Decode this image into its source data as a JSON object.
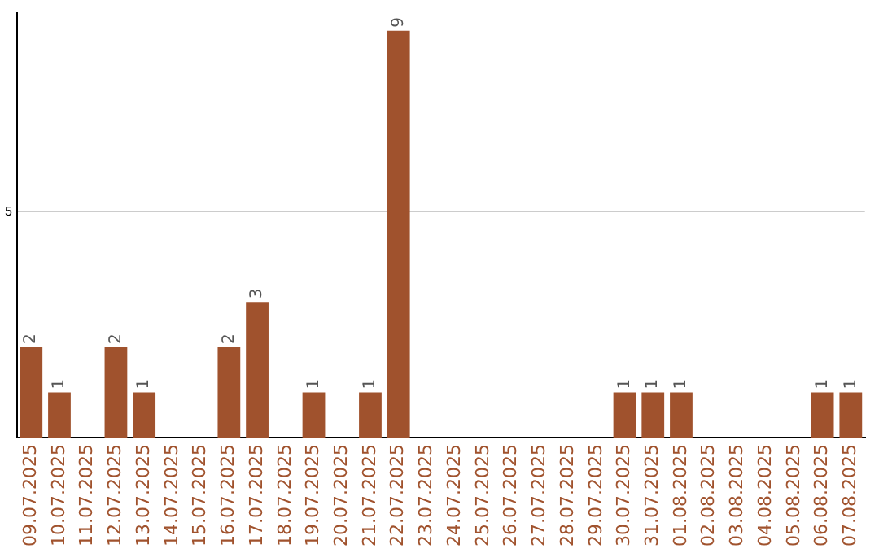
{
  "chart_data": {
    "type": "bar",
    "categories": [
      "09.07.2025",
      "10.07.2025",
      "11.07.2025",
      "12.07.2025",
      "13.07.2025",
      "14.07.2025",
      "15.07.2025",
      "16.07.2025",
      "17.07.2025",
      "18.07.2025",
      "19.07.2025",
      "20.07.2025",
      "21.07.2025",
      "22.07.2025",
      "23.07.2025",
      "24.07.2025",
      "25.07.2025",
      "26.07.2025",
      "27.07.2025",
      "28.07.2025",
      "29.07.2025",
      "30.07.2025",
      "31.07.2025",
      "01.08.2025",
      "02.08.2025",
      "03.08.2025",
      "04.08.2025",
      "05.08.2025",
      "06.08.2025",
      "07.08.2025"
    ],
    "values": [
      2,
      1,
      0,
      2,
      1,
      0,
      0,
      2,
      3,
      0,
      1,
      0,
      1,
      9,
      0,
      0,
      0,
      0,
      0,
      0,
      0,
      1,
      1,
      1,
      0,
      0,
      0,
      0,
      1,
      1
    ],
    "value_labels": [
      "2",
      "1",
      null,
      "2",
      "1",
      null,
      null,
      "2",
      "3",
      null,
      "1",
      null,
      "1",
      "9",
      null,
      null,
      null,
      null,
      null,
      null,
      null,
      "1",
      "1",
      "1",
      null,
      null,
      null,
      null,
      "1",
      "1"
    ],
    "color": "#a0522d",
    "ylim": [
      0,
      9.4
    ],
    "yticks": [
      5
    ],
    "grid": "y",
    "legend": false
  }
}
